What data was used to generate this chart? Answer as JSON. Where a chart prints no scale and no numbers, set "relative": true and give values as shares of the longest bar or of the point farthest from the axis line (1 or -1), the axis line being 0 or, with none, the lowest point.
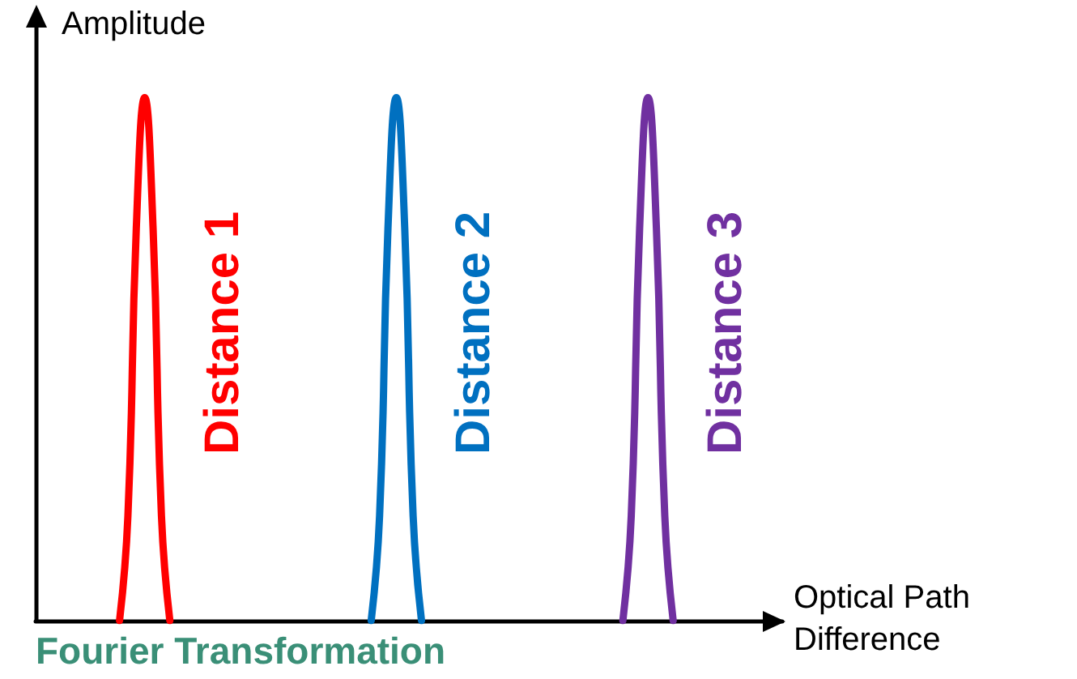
{
  "chart_data": {
    "type": "line",
    "relative": true,
    "xlabel": "Optical Path Difference",
    "ylabel": "Amplitude",
    "marker": "none",
    "line_style": "solid",
    "annotations": [
      "Fourier Transformation"
    ],
    "categories": [
      null,
      null,
      null,
      null,
      null,
      null,
      null,
      null,
      null,
      null,
      null,
      null,
      null,
      null,
      null,
      null,
      null,
      null,
      null,
      null,
      null,
      null,
      null,
      null,
      null,
      null,
      null,
      null,
      null,
      null,
      null,
      null,
      null,
      null,
      null,
      null,
      null,
      null,
      null,
      null,
      null,
      null,
      null,
      null,
      null,
      null,
      null,
      null,
      null,
      null,
      null,
      null,
      null,
      null,
      null,
      null,
      null,
      null,
      null,
      null,
      null,
      null,
      null,
      null,
      null,
      null,
      null,
      null,
      null,
      null,
      null,
      null,
      null,
      null,
      null,
      null,
      null,
      null,
      null,
      null,
      null,
      null,
      null,
      null,
      null,
      null,
      null,
      null,
      null,
      null
    ],
    "series": [
      {
        "name": "Distance 1",
        "color": "#ff0000",
        "values": [
          null,
          null,
          null,
          null,
          null,
          null,
          null,
          null,
          null,
          null,
          0,
          0.2,
          0.75,
          1,
          0.75,
          0.2,
          0,
          null,
          null,
          null,
          null,
          null,
          null,
          null,
          null,
          null,
          null,
          null,
          null,
          null,
          null,
          null,
          null,
          null,
          null,
          null,
          null,
          null,
          null,
          null,
          null,
          null,
          null,
          null,
          null,
          null,
          null,
          null,
          null,
          null,
          null,
          null,
          null,
          null,
          null,
          null,
          null,
          null,
          null,
          null,
          null,
          null,
          null,
          null,
          null,
          null,
          null,
          null,
          null,
          null,
          null,
          null,
          null,
          null,
          null,
          null,
          null,
          null,
          null,
          null,
          null,
          null,
          null,
          null,
          null,
          null,
          null,
          null,
          null,
          null
        ]
      },
      {
        "name": "Distance 2",
        "color": "#0070c0",
        "values": [
          null,
          null,
          null,
          null,
          null,
          null,
          null,
          null,
          null,
          null,
          null,
          null,
          null,
          null,
          null,
          null,
          null,
          null,
          null,
          null,
          null,
          null,
          null,
          null,
          null,
          null,
          null,
          null,
          null,
          null,
          null,
          null,
          null,
          null,
          null,
          null,
          null,
          null,
          null,
          null,
          0,
          0.2,
          0.75,
          1,
          0.75,
          0.2,
          0,
          null,
          null,
          null,
          null,
          null,
          null,
          null,
          null,
          null,
          null,
          null,
          null,
          null,
          null,
          null,
          null,
          null,
          null,
          null,
          null,
          null,
          null,
          null,
          null,
          null,
          null,
          null,
          null,
          null,
          null,
          null,
          null,
          null,
          null,
          null,
          null,
          null,
          null,
          null,
          null,
          null,
          null,
          null
        ]
      },
      {
        "name": "Distance 3",
        "color": "#7030a0",
        "values": [
          null,
          null,
          null,
          null,
          null,
          null,
          null,
          null,
          null,
          null,
          null,
          null,
          null,
          null,
          null,
          null,
          null,
          null,
          null,
          null,
          null,
          null,
          null,
          null,
          null,
          null,
          null,
          null,
          null,
          null,
          null,
          null,
          null,
          null,
          null,
          null,
          null,
          null,
          null,
          null,
          null,
          null,
          null,
          null,
          null,
          null,
          null,
          null,
          null,
          null,
          null,
          null,
          null,
          null,
          null,
          null,
          null,
          null,
          null,
          null,
          null,
          null,
          null,
          null,
          null,
          null,
          null,
          null,
          null,
          null,
          0,
          0.2,
          0.75,
          1,
          0.75,
          0.2,
          0,
          null,
          null,
          null,
          null,
          null,
          null,
          null,
          null,
          null,
          null,
          null,
          null,
          null
        ]
      }
    ]
  }
}
